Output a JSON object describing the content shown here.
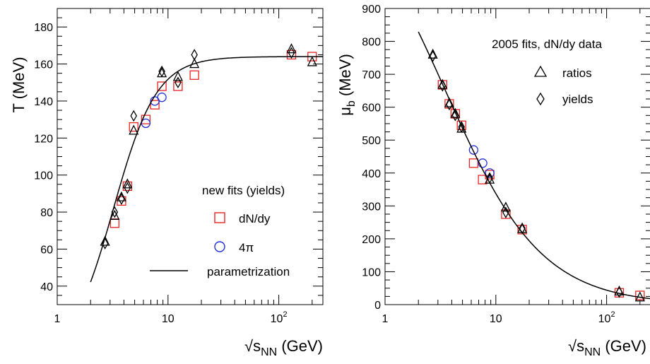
{
  "chart_data": [
    {
      "type": "scatter",
      "xscale": "log",
      "xlim": [
        1,
        250
      ],
      "ylim": [
        30,
        190
      ],
      "xlabel": "√s_NN (GeV)",
      "ylabel": "T (MeV)",
      "xticks": [
        "1",
        "10",
        "10^2"
      ],
      "yticks": [
        40,
        60,
        80,
        100,
        120,
        140,
        160,
        180
      ],
      "legend": {
        "title": "new fits (yields)",
        "placement": "bottom-right",
        "entries": [
          "dN/dy",
          "4π",
          "parametrization"
        ]
      },
      "series": [
        {
          "name": "dN/dy",
          "marker": "open-square",
          "color": "#e8231f",
          "points": [
            {
              "x": 3.3,
              "y": 74
            },
            {
              "x": 3.8,
              "y": 86
            },
            {
              "x": 4.3,
              "y": 94
            },
            {
              "x": 4.9,
              "y": 126
            },
            {
              "x": 6.3,
              "y": 130
            },
            {
              "x": 7.6,
              "y": 138
            },
            {
              "x": 8.8,
              "y": 148
            },
            {
              "x": 12.3,
              "y": 148
            },
            {
              "x": 17.3,
              "y": 154
            },
            {
              "x": 130,
              "y": 165
            },
            {
              "x": 200,
              "y": 164
            }
          ]
        },
        {
          "name": "4π",
          "marker": "open-circle",
          "color": "#1f2fd8",
          "points": [
            {
              "x": 6.3,
              "y": 128
            },
            {
              "x": 7.6,
              "y": 140
            },
            {
              "x": 8.8,
              "y": 142
            }
          ]
        },
        {
          "marker": "open-triangle",
          "color": "#000000",
          "points": [
            {
              "x": 2.7,
              "y": 64
            },
            {
              "x": 3.3,
              "y": 78
            },
            {
              "x": 3.8,
              "y": 88
            },
            {
              "x": 4.3,
              "y": 95
            },
            {
              "x": 4.9,
              "y": 124
            },
            {
              "x": 8.8,
              "y": 155
            },
            {
              "x": 12.3,
              "y": 153
            },
            {
              "x": 17.3,
              "y": 160
            },
            {
              "x": 130,
              "y": 168
            },
            {
              "x": 200,
              "y": 161
            }
          ]
        },
        {
          "marker": "open-diamond",
          "color": "#000000",
          "points": [
            {
              "x": 2.7,
              "y": 63
            },
            {
              "x": 3.3,
              "y": 80
            },
            {
              "x": 3.8,
              "y": 87
            },
            {
              "x": 4.3,
              "y": 93
            },
            {
              "x": 4.9,
              "y": 132
            },
            {
              "x": 8.8,
              "y": 156
            },
            {
              "x": 12.3,
              "y": 150
            },
            {
              "x": 17.3,
              "y": 165
            },
            {
              "x": 130,
              "y": 166
            }
          ]
        },
        {
          "name": "parametrization",
          "type": "line",
          "color": "#000000",
          "function": "T = 164 / (1 + exp(2.60 - ln(√s_NN) / 0.45))",
          "x_range": [
            2.0,
            250
          ]
        }
      ]
    },
    {
      "type": "scatter",
      "xscale": "log",
      "xlim": [
        1,
        250
      ],
      "ylim": [
        0,
        900
      ],
      "xlabel": "√s_NN (GeV)",
      "ylabel": "μ_b (MeV)",
      "xticks": [
        "1",
        "10",
        "10^2"
      ],
      "yticks": [
        0,
        100,
        200,
        300,
        400,
        500,
        600,
        700,
        800,
        900
      ],
      "legend": {
        "title": "2005 fits, dN/dy data",
        "placement": "top-right",
        "entries": [
          "ratios",
          "yields"
        ]
      },
      "series": [
        {
          "marker": "open-square",
          "color": "#e8231f",
          "points": [
            {
              "x": 3.3,
              "y": 668
            },
            {
              "x": 3.8,
              "y": 610
            },
            {
              "x": 4.3,
              "y": 580
            },
            {
              "x": 4.9,
              "y": 545
            },
            {
              "x": 6.3,
              "y": 430
            },
            {
              "x": 7.6,
              "y": 380
            },
            {
              "x": 8.8,
              "y": 395
            },
            {
              "x": 12.3,
              "y": 275
            },
            {
              "x": 17.3,
              "y": 228
            },
            {
              "x": 130,
              "y": 36
            },
            {
              "x": 200,
              "y": 28
            }
          ]
        },
        {
          "marker": "open-circle",
          "color": "#1f2fd8",
          "points": [
            {
              "x": 6.3,
              "y": 470
            },
            {
              "x": 7.6,
              "y": 430
            },
            {
              "x": 8.8,
              "y": 400
            }
          ]
        },
        {
          "name": "ratios",
          "marker": "open-triangle",
          "color": "#000000",
          "points": [
            {
              "x": 2.7,
              "y": 760
            },
            {
              "x": 3.3,
              "y": 668
            },
            {
              "x": 3.8,
              "y": 612
            },
            {
              "x": 4.3,
              "y": 580
            },
            {
              "x": 4.9,
              "y": 535
            },
            {
              "x": 8.8,
              "y": 380
            },
            {
              "x": 12.3,
              "y": 295
            },
            {
              "x": 17.3,
              "y": 230
            },
            {
              "x": 130,
              "y": 40
            },
            {
              "x": 200,
              "y": 22
            }
          ]
        },
        {
          "name": "yields",
          "marker": "open-diamond",
          "color": "#000000",
          "points": [
            {
              "x": 2.7,
              "y": 755
            },
            {
              "x": 3.3,
              "y": 665
            },
            {
              "x": 3.8,
              "y": 608
            },
            {
              "x": 4.3,
              "y": 575
            },
            {
              "x": 4.9,
              "y": 540
            },
            {
              "x": 8.8,
              "y": 385
            },
            {
              "x": 12.3,
              "y": 280
            },
            {
              "x": 17.3,
              "y": 232
            },
            {
              "x": 130,
              "y": 38
            }
          ]
        },
        {
          "type": "line",
          "color": "#000000",
          "function": "μ_b = 1303 / (1 + 0.286 · √s_NN)",
          "x_range": [
            2.0,
            250
          ]
        }
      ]
    }
  ]
}
